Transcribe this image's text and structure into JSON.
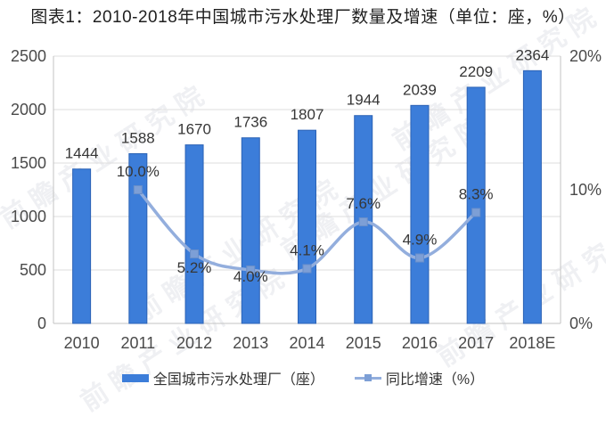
{
  "title": "图表1：2010-2018年中国城市污水处理厂数量及增速（单位：座，%）",
  "watermark_text": "前瞻产业研究院",
  "colors": {
    "bar": "#3c7dd9",
    "bar_border": "#2b62b5",
    "line": "#93aedd",
    "marker": "#7d9fd6",
    "marker_border": "#6a8fc9",
    "grid": "#dcdcdc",
    "axis_line": "#c3c3c3",
    "tick_text": "#4a4a4a",
    "label_text": "#363636"
  },
  "legend": [
    {
      "label": "全国城市污水处理厂（座）",
      "type": "bar"
    },
    {
      "label": "同比增速（%）",
      "type": "line"
    }
  ],
  "chart_data": {
    "type": "bar",
    "subtype": "bar-line-combo",
    "title": "图表1：2010-2018年中国城市污水处理厂数量及增速（单位：座，%）",
    "categories": [
      "2010",
      "2011",
      "2012",
      "2013",
      "2014",
      "2015",
      "2016",
      "2017",
      "2018E"
    ],
    "series": [
      {
        "name": "全国城市污水处理厂（座）",
        "type": "bar",
        "axis": "left",
        "values": [
          1444,
          1588,
          1670,
          1736,
          1807,
          1944,
          2039,
          2209,
          2364
        ],
        "value_labels": [
          "1444",
          "1588",
          "1670",
          "1736",
          "1807",
          "1944",
          "2039",
          "2209",
          "2364"
        ]
      },
      {
        "name": "同比增速（%）",
        "type": "line",
        "axis": "right",
        "values": [
          null,
          10.0,
          5.2,
          4.0,
          4.1,
          7.6,
          4.9,
          8.3,
          null
        ],
        "value_labels": [
          null,
          "10.0%",
          "5.2%",
          "4.0%",
          "4.1%",
          "7.6%",
          "4.9%",
          "8.3%",
          null
        ],
        "label_dy": [
          null,
          -15,
          21,
          13,
          -15,
          -15,
          -15,
          -15,
          null
        ]
      }
    ],
    "left_axis": {
      "min": 0,
      "max": 2500,
      "step": 500,
      "tick_labels": [
        "0",
        "500",
        "1000",
        "1500",
        "2000",
        "2500"
      ]
    },
    "right_axis": {
      "min": 0,
      "max": 20,
      "step": 10,
      "tick_labels": [
        "0%",
        "10%",
        "20%"
      ]
    },
    "grid": true,
    "legend_position": "bottom"
  }
}
